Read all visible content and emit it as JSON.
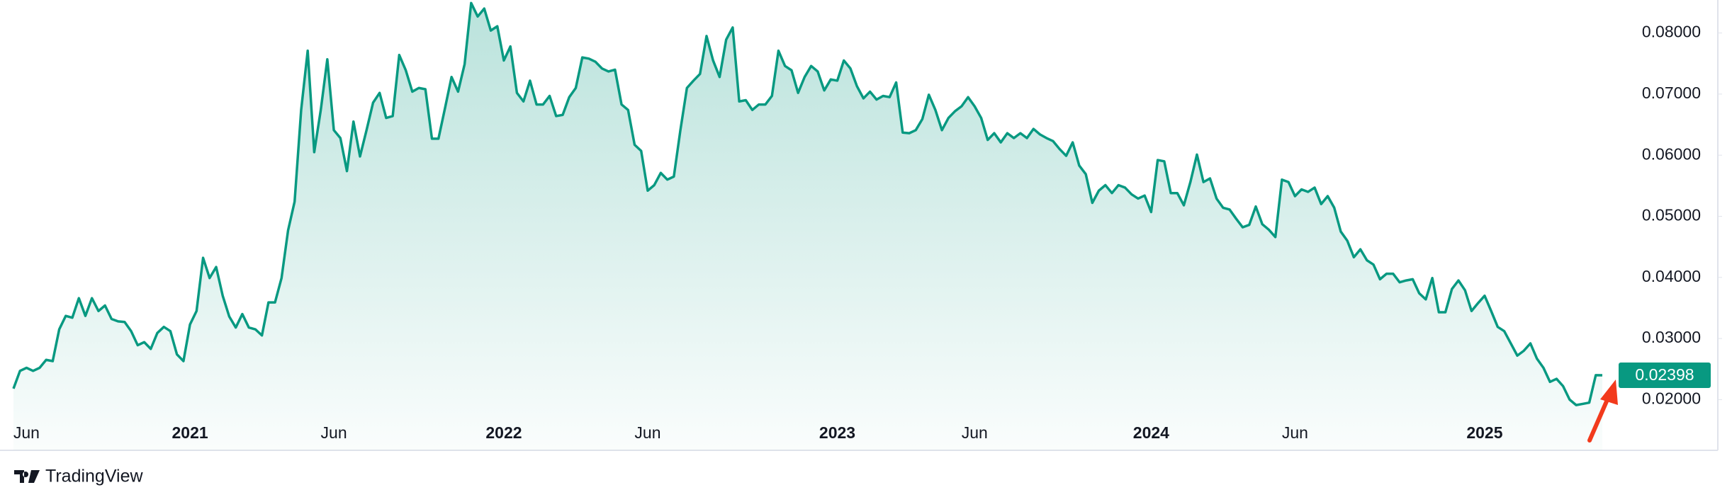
{
  "chart_data": {
    "type": "area",
    "categories": [
      null,
      null,
      "Jun",
      null,
      null,
      null,
      null,
      null,
      null,
      null,
      null,
      null,
      null,
      null,
      null,
      null,
      null,
      null,
      null,
      null,
      null,
      null,
      null,
      null,
      null,
      null,
      null,
      "2021",
      null,
      null,
      null,
      null,
      null,
      null,
      null,
      null,
      null,
      null,
      null,
      null,
      null,
      null,
      null,
      null,
      null,
      null,
      null,
      null,
      null,
      "Jun",
      null,
      null,
      null,
      null,
      null,
      null,
      null,
      null,
      null,
      null,
      null,
      null,
      null,
      null,
      null,
      null,
      null,
      null,
      null,
      null,
      null,
      null,
      null,
      null,
      null,
      "2022",
      null,
      null,
      null,
      null,
      null,
      null,
      null,
      null,
      null,
      null,
      null,
      null,
      null,
      null,
      null,
      null,
      null,
      null,
      null,
      null,
      null,
      "Jun",
      null,
      null,
      null,
      null,
      null,
      null,
      null,
      null,
      null,
      null,
      null,
      null,
      null,
      null,
      null,
      null,
      null,
      null,
      null,
      null,
      null,
      null,
      null,
      null,
      null,
      null,
      null,
      null,
      "2023",
      null,
      null,
      null,
      null,
      null,
      null,
      null,
      null,
      null,
      null,
      null,
      null,
      null,
      null,
      null,
      null,
      null,
      null,
      null,
      null,
      "Jun",
      null,
      null,
      null,
      null,
      null,
      null,
      null,
      null,
      null,
      null,
      null,
      null,
      null,
      null,
      null,
      null,
      null,
      null,
      null,
      null,
      null,
      null,
      null,
      null,
      null,
      null,
      "2024",
      null,
      null,
      null,
      null,
      null,
      null,
      null,
      null,
      null,
      null,
      null,
      null,
      null,
      null,
      null,
      null,
      null,
      null,
      null,
      null,
      null,
      "Jun",
      null,
      null,
      null,
      null,
      null,
      null,
      null,
      null,
      null,
      null,
      null,
      null,
      null,
      null,
      null,
      null,
      null,
      null,
      null,
      null,
      null,
      null,
      null,
      null,
      null,
      null,
      null,
      null,
      "2025",
      null,
      null,
      null,
      null,
      null,
      null,
      null,
      null,
      null,
      null,
      null,
      null,
      null,
      null,
      null,
      null,
      null,
      null
    ],
    "series": [
      {
        "color": "#089981",
        "values": [
          0.0218,
          0.0247,
          0.0252,
          0.0247,
          0.0252,
          0.0265,
          0.0263,
          0.0315,
          0.0337,
          0.0334,
          0.0366,
          0.0337,
          0.0366,
          0.0345,
          0.0354,
          0.0332,
          0.0328,
          0.0327,
          0.0312,
          0.0289,
          0.0294,
          0.0283,
          0.0309,
          0.0319,
          0.0312,
          0.0274,
          0.0263,
          0.0323,
          0.0345,
          0.0432,
          0.0399,
          0.0417,
          0.037,
          0.0336,
          0.0318,
          0.034,
          0.0318,
          0.0315,
          0.0305,
          0.0359,
          0.0359,
          0.0399,
          0.0477,
          0.0524,
          0.0674,
          0.0771,
          0.0605,
          0.0674,
          0.0757,
          0.0641,
          0.0628,
          0.0574,
          0.0655,
          0.0598,
          0.0641,
          0.0686,
          0.0702,
          0.0661,
          0.0664,
          0.0764,
          0.0739,
          0.0704,
          0.071,
          0.0708,
          0.0627,
          0.0627,
          0.0677,
          0.0728,
          0.0704,
          0.0749,
          0.0849,
          0.0827,
          0.084,
          0.0804,
          0.0811,
          0.0755,
          0.0778,
          0.0702,
          0.0688,
          0.0722,
          0.0683,
          0.0683,
          0.0697,
          0.0664,
          0.0666,
          0.0695,
          0.071,
          0.076,
          0.0758,
          0.0753,
          0.0742,
          0.0737,
          0.074,
          0.0683,
          0.0674,
          0.0617,
          0.0607,
          0.0542,
          0.0551,
          0.0571,
          0.056,
          0.0565,
          0.0641,
          0.071,
          0.0722,
          0.0733,
          0.0795,
          0.0755,
          0.0728,
          0.0789,
          0.0809,
          0.0688,
          0.069,
          0.0674,
          0.0683,
          0.0683,
          0.0697,
          0.0771,
          0.0746,
          0.0739,
          0.0702,
          0.0728,
          0.0746,
          0.0737,
          0.0706,
          0.0724,
          0.0722,
          0.0755,
          0.0742,
          0.0713,
          0.0693,
          0.0704,
          0.0691,
          0.0697,
          0.0695,
          0.0719,
          0.0637,
          0.0636,
          0.0641,
          0.0659,
          0.0699,
          0.0674,
          0.0641,
          0.0661,
          0.0672,
          0.068,
          0.0695,
          0.068,
          0.0661,
          0.0625,
          0.0636,
          0.0621,
          0.0636,
          0.0628,
          0.0636,
          0.0628,
          0.0643,
          0.0634,
          0.0628,
          0.0623,
          0.061,
          0.0599,
          0.0621,
          0.0583,
          0.0569,
          0.0522,
          0.0542,
          0.0551,
          0.0538,
          0.0551,
          0.0547,
          0.0536,
          0.0529,
          0.0534,
          0.0507,
          0.0592,
          0.059,
          0.0538,
          0.0538,
          0.0518,
          0.0556,
          0.0601,
          0.0556,
          0.0562,
          0.0529,
          0.0514,
          0.0511,
          0.0496,
          0.0482,
          0.0486,
          0.0516,
          0.0487,
          0.0478,
          0.0466,
          0.056,
          0.0556,
          0.0533,
          0.0544,
          0.054,
          0.0547,
          0.052,
          0.0533,
          0.0514,
          0.0475,
          0.046,
          0.0433,
          0.0446,
          0.0428,
          0.0421,
          0.0397,
          0.0406,
          0.0406,
          0.0392,
          0.0395,
          0.0397,
          0.0374,
          0.0364,
          0.0399,
          0.0343,
          0.0343,
          0.0381,
          0.0395,
          0.0379,
          0.0345,
          0.0358,
          0.037,
          0.0345,
          0.0319,
          0.0312,
          0.0292,
          0.0272,
          0.028,
          0.0292,
          0.0267,
          0.0252,
          0.0229,
          0.0234,
          0.0222,
          0.02,
          0.0191,
          0.0193,
          0.0195,
          0.024,
          0.02398
        ]
      }
    ],
    "ylim": [
      0.0117,
      0.0854
    ],
    "yticks": [
      {
        "value": 0.02,
        "label": "0.02000"
      },
      {
        "value": 0.03,
        "label": "0.03000"
      },
      {
        "value": 0.04,
        "label": "0.04000"
      },
      {
        "value": 0.05,
        "label": "0.05000"
      },
      {
        "value": 0.06,
        "label": "0.06000"
      },
      {
        "value": 0.07,
        "label": "0.07000"
      },
      {
        "value": 0.08,
        "label": "0.08000"
      }
    ],
    "grid": false
  },
  "branding": "TradingView"
}
